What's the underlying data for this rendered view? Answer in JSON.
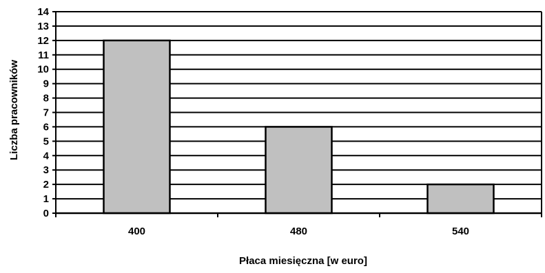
{
  "chart_data": {
    "type": "bar",
    "title": "",
    "xlabel": "Płaca miesięczna [w euro]",
    "ylabel": "Liczba pracowników",
    "categories": [
      "400",
      "480",
      "540"
    ],
    "values": [
      12,
      6,
      2
    ],
    "ylim": [
      0,
      14
    ],
    "yticks": [
      0,
      1,
      2,
      3,
      4,
      5,
      6,
      7,
      8,
      9,
      10,
      11,
      12,
      13,
      14
    ],
    "grid": true,
    "legend": "none",
    "colors": {
      "bar_fill": "#c0c0c0",
      "bar_stroke": "#000000",
      "grid": "#000000",
      "background": "#ffffff"
    }
  }
}
